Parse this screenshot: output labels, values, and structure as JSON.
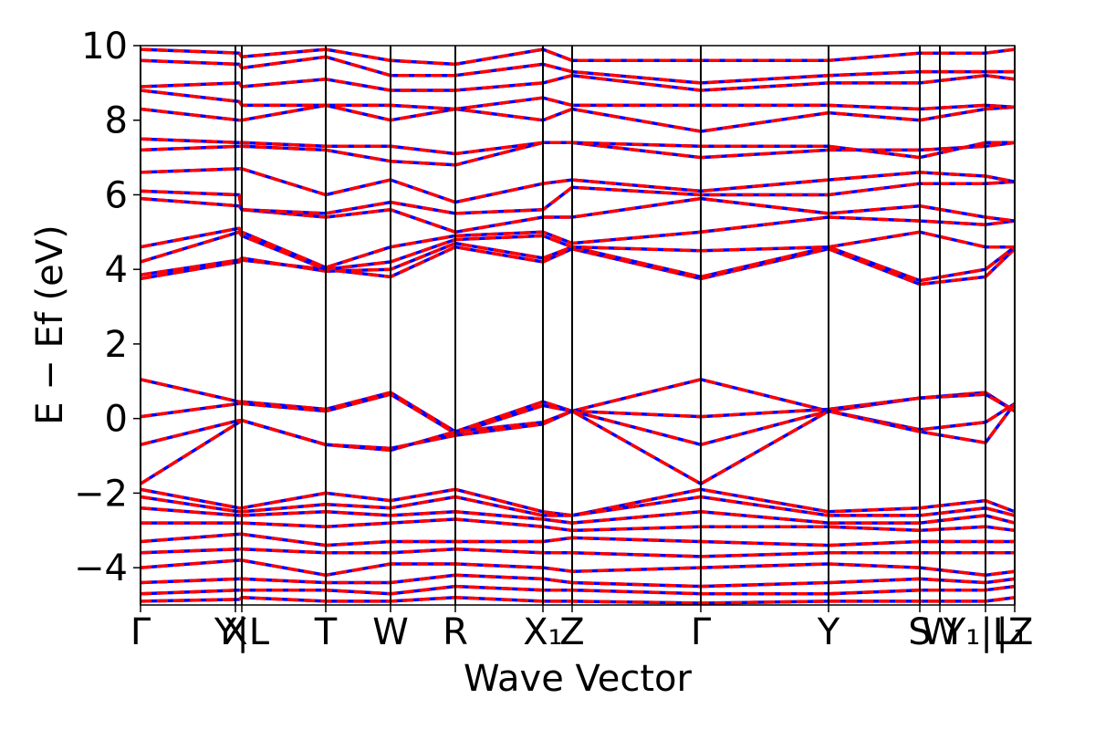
{
  "chart_data": {
    "type": "line",
    "xlabel": "Wave Vector",
    "ylabel": "E − Ef (eV)",
    "xlim": [
      0,
      9.58
    ],
    "ylim": [
      -5,
      10
    ],
    "yticks": [
      {
        "value": -4,
        "label": "−4"
      },
      {
        "value": -2,
        "label": "−2"
      },
      0,
      2,
      4,
      6,
      8,
      10
    ],
    "xticks": [
      {
        "value": 0,
        "label": "Γ"
      },
      {
        "value": 1.04,
        "label": "X"
      },
      {
        "value": 1.11,
        "label": "Y|L"
      },
      {
        "value": 2.03,
        "label": "T"
      },
      {
        "value": 2.74,
        "label": "W"
      },
      {
        "value": 3.45,
        "label": "R"
      },
      {
        "value": 4.41,
        "label": "X₁"
      },
      {
        "value": 4.73,
        "label": "Z"
      },
      {
        "value": 6.14,
        "label": "Γ"
      },
      {
        "value": 7.54,
        "label": "Y"
      },
      {
        "value": 8.54,
        "label": "S"
      },
      {
        "value": 8.76,
        "label": "W"
      },
      {
        "value": 9.26,
        "label": "Y₁|L₁"
      },
      {
        "value": 9.58,
        "label": "|Z"
      }
    ],
    "x": [
      0,
      1.08,
      1.11,
      2.03,
      2.74,
      3.45,
      4.41,
      4.73,
      6.14,
      7.54,
      8.54,
      9.26,
      9.58
    ],
    "colors": [
      "#0000ff",
      "#ff0000"
    ],
    "series": [
      {
        "values": [
          1.05,
          0.45,
          0.45,
          0.25,
          0.7,
          -0.35,
          0.45,
          0.2,
          1.05,
          0.2,
          0.55,
          0.7,
          0.2
        ]
      },
      {
        "values": [
          0.05,
          0.4,
          0.4,
          0.2,
          0.65,
          -0.4,
          0.35,
          0.2,
          0.05,
          0.25,
          0.55,
          0.65,
          0.2
        ]
      },
      {
        "values": [
          -0.7,
          -0.05,
          -0.05,
          -0.7,
          -0.85,
          -0.35,
          -0.1,
          0.2,
          -0.7,
          0.2,
          -0.3,
          -0.1,
          0.4
        ]
      },
      {
        "values": [
          -1.75,
          -0.1,
          -0.05,
          -0.7,
          -0.8,
          -0.45,
          -0.15,
          0.2,
          -1.75,
          0.2,
          -0.35,
          -0.65,
          0.4
        ]
      },
      {
        "values": [
          3.75,
          4.2,
          4.25,
          4.0,
          3.8,
          4.6,
          4.2,
          4.55,
          3.75,
          4.55,
          3.6,
          3.8,
          4.55
        ]
      },
      {
        "values": [
          3.85,
          4.25,
          4.3,
          3.95,
          4.0,
          4.7,
          4.3,
          4.6,
          3.8,
          4.6,
          3.7,
          4.0,
          4.6
        ]
      },
      {
        "values": [
          4.2,
          5.0,
          4.9,
          4.0,
          4.2,
          4.8,
          4.9,
          4.6,
          4.5,
          4.6,
          5.0,
          4.6,
          4.6
        ]
      },
      {
        "values": [
          4.6,
          5.1,
          5.0,
          4.05,
          4.6,
          4.9,
          5.0,
          4.7,
          5.0,
          5.4,
          5.3,
          5.2,
          5.3
        ]
      },
      {
        "values": [
          5.9,
          5.7,
          5.6,
          5.4,
          5.6,
          5.0,
          5.4,
          5.4,
          5.9,
          5.5,
          5.7,
          5.4,
          5.3
        ]
      },
      {
        "values": [
          6.1,
          6.0,
          5.6,
          5.5,
          5.8,
          5.5,
          5.6,
          6.2,
          6.0,
          6.0,
          6.3,
          6.3,
          6.35
        ]
      },
      {
        "values": [
          6.6,
          6.7,
          6.7,
          6.0,
          6.4,
          5.8,
          6.3,
          6.4,
          6.1,
          6.4,
          6.6,
          6.5,
          6.35
        ]
      },
      {
        "values": [
          7.2,
          7.3,
          7.3,
          7.2,
          6.9,
          6.8,
          7.4,
          7.4,
          7.0,
          7.2,
          7.2,
          7.3,
          7.4
        ]
      },
      {
        "values": [
          7.5,
          7.4,
          7.4,
          7.3,
          7.3,
          7.1,
          7.4,
          7.4,
          7.3,
          7.3,
          7.0,
          7.4,
          7.4
        ]
      },
      {
        "values": [
          8.3,
          8.0,
          8.0,
          8.4,
          8.0,
          8.3,
          8.0,
          8.3,
          7.7,
          8.2,
          8.0,
          8.3,
          8.35
        ]
      },
      {
        "values": [
          8.8,
          8.5,
          8.4,
          8.4,
          8.4,
          8.3,
          8.6,
          8.4,
          8.4,
          8.4,
          8.3,
          8.4,
          8.35
        ]
      },
      {
        "values": [
          8.9,
          9.0,
          8.9,
          9.1,
          8.8,
          8.8,
          9.0,
          9.2,
          8.8,
          9.0,
          9.0,
          9.2,
          9.1
        ]
      },
      {
        "values": [
          9.6,
          9.5,
          9.4,
          9.7,
          9.2,
          9.2,
          9.5,
          9.3,
          9.0,
          9.2,
          9.3,
          9.3,
          9.3
        ]
      },
      {
        "values": [
          9.9,
          9.8,
          9.7,
          9.9,
          9.6,
          9.5,
          9.9,
          9.6,
          9.6,
          9.6,
          9.8,
          9.8,
          9.9
        ]
      },
      {
        "values": [
          -1.9,
          -2.4,
          -2.4,
          -2.0,
          -2.2,
          -1.9,
          -2.5,
          -2.6,
          -1.9,
          -2.5,
          -2.4,
          -2.2,
          -2.5
        ]
      },
      {
        "values": [
          -2.1,
          -2.5,
          -2.5,
          -2.3,
          -2.4,
          -2.1,
          -2.6,
          -2.6,
          -2.1,
          -2.6,
          -2.6,
          -2.4,
          -2.6
        ]
      },
      {
        "values": [
          -2.4,
          -2.6,
          -2.6,
          -2.5,
          -2.6,
          -2.5,
          -2.7,
          -2.8,
          -2.5,
          -2.8,
          -2.8,
          -2.6,
          -2.8
        ]
      },
      {
        "values": [
          -2.8,
          -2.8,
          -2.8,
          -2.9,
          -2.8,
          -2.7,
          -2.9,
          -3.0,
          -2.9,
          -2.9,
          -3.0,
          -2.9,
          -3.0
        ]
      },
      {
        "values": [
          -3.3,
          -3.1,
          -3.1,
          -3.4,
          -3.3,
          -3.3,
          -3.3,
          -3.2,
          -3.3,
          -3.4,
          -3.3,
          -3.3,
          -3.3
        ]
      },
      {
        "values": [
          -3.6,
          -3.5,
          -3.5,
          -3.6,
          -3.6,
          -3.5,
          -3.6,
          -3.6,
          -3.7,
          -3.6,
          -3.6,
          -3.6,
          -3.6
        ]
      },
      {
        "values": [
          -4.0,
          -3.8,
          -3.8,
          -4.2,
          -3.9,
          -3.9,
          -4.0,
          -4.1,
          -4.0,
          -3.9,
          -4.0,
          -4.2,
          -4.1
        ]
      },
      {
        "values": [
          -4.4,
          -4.3,
          -4.3,
          -4.4,
          -4.4,
          -4.2,
          -4.3,
          -4.4,
          -4.5,
          -4.4,
          -4.3,
          -4.4,
          -4.3
        ]
      },
      {
        "values": [
          -4.7,
          -4.6,
          -4.6,
          -4.6,
          -4.7,
          -4.5,
          -4.6,
          -4.6,
          -4.7,
          -4.7,
          -4.6,
          -4.6,
          -4.5
        ]
      },
      {
        "values": [
          -4.9,
          -4.85,
          -4.8,
          -4.9,
          -4.9,
          -4.8,
          -4.9,
          -4.9,
          -4.95,
          -4.9,
          -4.9,
          -4.9,
          -4.8
        ]
      }
    ]
  }
}
